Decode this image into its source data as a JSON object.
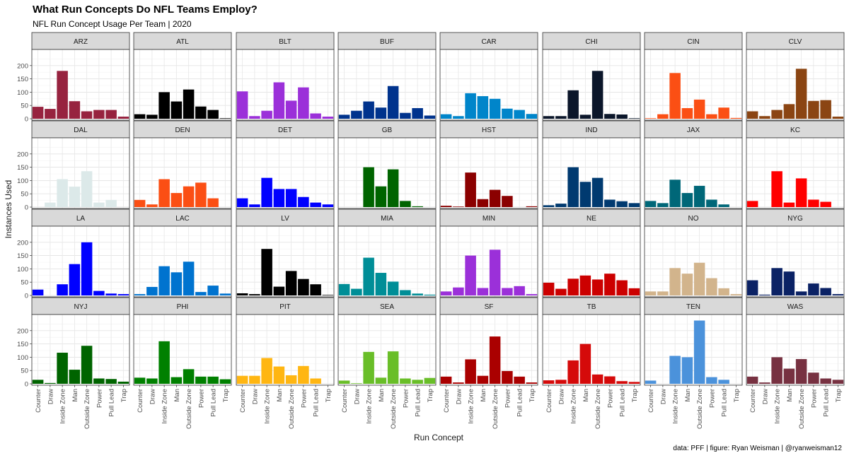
{
  "chart_data": {
    "type": "bar",
    "title": "What Run Concepts Do NFL Teams Employ?",
    "subtitle": "NFL Run Concept Usage Per Team | 2020",
    "xlabel": "Run Concept",
    "ylabel": "Instances Used",
    "caption": "data: PFF | figure: Ryan Weisman | @ryanweisman12",
    "categories": [
      "Counter",
      "Draw",
      "Inside Zone",
      "Man",
      "Outside Zone",
      "Power",
      "Pull Lead",
      "Trap"
    ],
    "ylim": [
      0,
      250
    ],
    "yticks": [
      0,
      50,
      100,
      150,
      200
    ],
    "grid": true,
    "layout": "facet grid, 4 rows x 8 columns",
    "series": [
      {
        "name": "ARZ",
        "color": "#97233F",
        "values": [
          45,
          37,
          180,
          66,
          28,
          33,
          33,
          8
        ]
      },
      {
        "name": "ATL",
        "color": "#000000",
        "values": [
          17,
          15,
          100,
          65,
          110,
          46,
          33,
          2
        ]
      },
      {
        "name": "BLT",
        "color": "#9B30D9",
        "values": [
          103,
          10,
          30,
          137,
          68,
          118,
          20,
          8
        ]
      },
      {
        "name": "BUF",
        "color": "#00338D",
        "values": [
          15,
          30,
          65,
          42,
          123,
          22,
          40,
          12
        ]
      },
      {
        "name": "CAR",
        "color": "#0085CA",
        "values": [
          17,
          10,
          96,
          85,
          75,
          38,
          33,
          18
        ]
      },
      {
        "name": "CHI",
        "color": "#0B162A",
        "values": [
          10,
          10,
          107,
          15,
          180,
          18,
          16,
          2
        ]
      },
      {
        "name": "CIN",
        "color": "#FB4F14",
        "values": [
          2,
          17,
          172,
          40,
          72,
          17,
          42,
          3
        ]
      },
      {
        "name": "CLV",
        "color": "#8B4513",
        "values": [
          28,
          10,
          33,
          55,
          188,
          67,
          70,
          8
        ]
      },
      {
        "name": "DAL",
        "color": "#DCE9E9",
        "values": [
          0,
          17,
          105,
          77,
          135,
          17,
          27,
          0
        ]
      },
      {
        "name": "DEN",
        "color": "#FB4F14",
        "values": [
          27,
          10,
          105,
          53,
          78,
          92,
          33,
          0
        ]
      },
      {
        "name": "DET",
        "color": "#0000FF",
        "values": [
          33,
          10,
          110,
          68,
          68,
          38,
          17,
          10
        ]
      },
      {
        "name": "GB",
        "color": "#006400",
        "values": [
          0,
          0,
          150,
          78,
          142,
          23,
          3,
          0
        ]
      },
      {
        "name": "HST",
        "color": "#8B0000",
        "values": [
          5,
          2,
          130,
          30,
          65,
          42,
          0,
          3
        ]
      },
      {
        "name": "IND",
        "color": "#003A70",
        "values": [
          7,
          13,
          150,
          95,
          110,
          28,
          22,
          15
        ]
      },
      {
        "name": "JAX",
        "color": "#006778",
        "values": [
          23,
          15,
          103,
          53,
          80,
          28,
          10,
          0
        ]
      },
      {
        "name": "KC",
        "color": "#FF0000",
        "values": [
          23,
          0,
          135,
          17,
          108,
          28,
          20,
          0
        ]
      },
      {
        "name": "LA",
        "color": "#0000FF",
        "values": [
          22,
          0,
          42,
          118,
          200,
          17,
          7,
          5
        ]
      },
      {
        "name": "LAC",
        "color": "#0073CF",
        "values": [
          5,
          32,
          110,
          87,
          127,
          13,
          37,
          7
        ]
      },
      {
        "name": "LV",
        "color": "#000000",
        "values": [
          8,
          5,
          175,
          33,
          92,
          62,
          42,
          2
        ]
      },
      {
        "name": "MIA",
        "color": "#008E97",
        "values": [
          43,
          25,
          142,
          85,
          52,
          20,
          7,
          3
        ]
      },
      {
        "name": "MIN",
        "color": "#9B30D9",
        "values": [
          15,
          30,
          150,
          28,
          172,
          28,
          35,
          5
        ]
      },
      {
        "name": "NE",
        "color": "#CC0000",
        "values": [
          48,
          25,
          63,
          75,
          60,
          82,
          57,
          27
        ]
      },
      {
        "name": "NO",
        "color": "#D2B48C",
        "values": [
          15,
          15,
          103,
          82,
          123,
          65,
          27,
          5
        ]
      },
      {
        "name": "NYG",
        "color": "#0B2265",
        "values": [
          57,
          3,
          103,
          90,
          15,
          45,
          28,
          5
        ]
      },
      {
        "name": "NYJ",
        "color": "#006400",
        "values": [
          15,
          3,
          117,
          53,
          143,
          20,
          18,
          8
        ]
      },
      {
        "name": "PHI",
        "color": "#008000",
        "values": [
          23,
          20,
          160,
          25,
          55,
          27,
          27,
          17
        ]
      },
      {
        "name": "PIT",
        "color": "#FFB612",
        "values": [
          30,
          30,
          97,
          65,
          32,
          67,
          20,
          0
        ]
      },
      {
        "name": "SEA",
        "color": "#69BE28",
        "values": [
          12,
          2,
          120,
          23,
          122,
          20,
          15,
          22
        ]
      },
      {
        "name": "SF",
        "color": "#AA0000",
        "values": [
          27,
          5,
          92,
          30,
          178,
          48,
          27,
          5
        ]
      },
      {
        "name": "TB",
        "color": "#D50A0A",
        "values": [
          13,
          15,
          88,
          150,
          35,
          28,
          10,
          7
        ]
      },
      {
        "name": "TEN",
        "color": "#4B92DB",
        "values": [
          12,
          0,
          105,
          100,
          238,
          25,
          15,
          0
        ]
      },
      {
        "name": "WAS",
        "color": "#773141",
        "values": [
          27,
          5,
          100,
          57,
          93,
          42,
          20,
          15
        ]
      }
    ]
  }
}
